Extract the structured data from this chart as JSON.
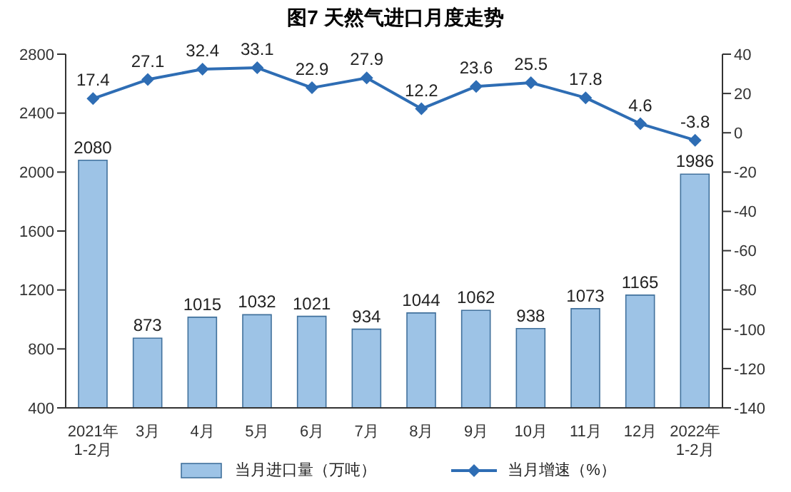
{
  "chart_data": {
    "type": "bar",
    "title": "图7 天然气进口月度走势",
    "categories": [
      "2021年\n1-2月",
      "3月",
      "4月",
      "5月",
      "6月",
      "7月",
      "8月",
      "9月",
      "10月",
      "11月",
      "12月",
      "2022年\n1-2月"
    ],
    "series": [
      {
        "name": "当月进口量（万吨）",
        "color": "#9dc3e6",
        "values": [
          2080,
          873,
          1015,
          1032,
          1021,
          934,
          1044,
          1062,
          938,
          1073,
          1165,
          1986
        ]
      },
      {
        "name": "当月增速（%）",
        "type": "line",
        "axis": "y2",
        "color": "#2e6db4",
        "values": [
          17.4,
          27.1,
          32.4,
          33.1,
          22.9,
          27.9,
          12.2,
          23.6,
          25.5,
          17.8,
          4.6,
          -3.8
        ]
      }
    ],
    "ylim": [
      400,
      2800
    ],
    "yticks": [
      400,
      800,
      1200,
      1600,
      2000,
      2400,
      2800
    ],
    "y2lim": [
      -140,
      40
    ],
    "y2ticks": [
      -140,
      -120,
      -100,
      -80,
      -60,
      -40,
      -20,
      0,
      20,
      40
    ],
    "data_labels": true,
    "legend": "bottom",
    "marker": "diamond",
    "line_style": "solid"
  }
}
